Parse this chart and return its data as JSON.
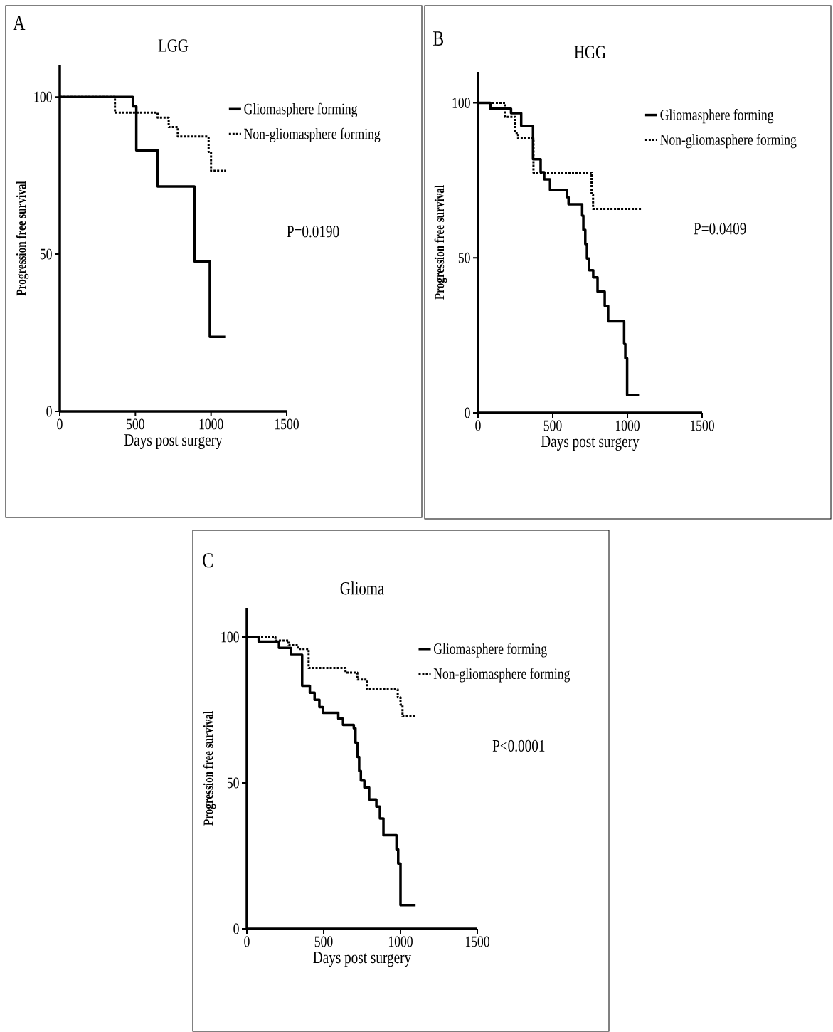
{
  "chart_data": [
    {
      "type": "step",
      "title": "LGG",
      "xlabel": "Days post surgery",
      "ylabel": "Progression free survival",
      "xlim": [
        0,
        1500
      ],
      "ylim": [
        0,
        110
      ],
      "xticks": [
        0,
        500,
        1000,
        1500
      ],
      "yticks": [
        0,
        50,
        100
      ],
      "legend": "top right",
      "marker": "none",
      "annotations": [
        "A",
        "P=0.0190"
      ],
      "series": [
        {
          "name": "Gliomasphere forming",
          "color": "#000000",
          "line_style": "solid",
          "x": [
            0,
            483,
            506,
            647,
            890,
            992,
            1094
          ],
          "values": [
            100,
            97,
            83,
            71.5,
            47.7,
            23.7,
            23.7
          ]
        },
        {
          "name": "Non-gliomasphere forming",
          "color": "#000000",
          "line_style": "dotted",
          "x": [
            0,
            365,
            647,
            720,
            780,
            984,
            1000,
            1098
          ],
          "values": [
            100,
            95,
            93.4,
            90.4,
            87.4,
            82.5,
            76.5,
            76.5
          ]
        }
      ]
    },
    {
      "type": "step",
      "title": "HGG",
      "xlabel": "Days post surgery",
      "ylabel": "Progression free survival",
      "xlim": [
        0,
        1500
      ],
      "ylim": [
        0,
        110
      ],
      "xticks": [
        0,
        500,
        1000,
        1500
      ],
      "yticks": [
        0,
        50,
        100
      ],
      "legend": "top right",
      "marker": "none",
      "annotations": [
        "B",
        "P=0.0409"
      ],
      "series": [
        {
          "name": "Gliomasphere forming",
          "color": "#000000",
          "line_style": "solid",
          "x": [
            0,
            82,
            221,
            289,
            368,
            419,
            443,
            482,
            594,
            606,
            697,
            705,
            718,
            729,
            744,
            771,
            800,
            848,
            871,
            978,
            986,
            998,
            1078
          ],
          "values": [
            100,
            98.1,
            96.7,
            92.6,
            81.8,
            77.6,
            75.3,
            71.9,
            69.6,
            67.3,
            63.6,
            59,
            54.4,
            49.8,
            46,
            43.7,
            39.1,
            34.5,
            29.5,
            22.2,
            17.6,
            5.7,
            5.7
          ]
        },
        {
          "name": "Non-gliomasphere forming",
          "color": "#000000",
          "line_style": "dotted",
          "x": [
            0,
            181,
            250,
            268,
            371,
            760,
            770,
            1099
          ],
          "values": [
            100,
            95.5,
            90.3,
            88.5,
            77.5,
            70.4,
            65.8,
            65.8
          ]
        }
      ]
    },
    {
      "type": "step",
      "title": "Glioma",
      "xlabel": "Days post surgery",
      "ylabel": "Progression free survival",
      "xlim": [
        0,
        1500
      ],
      "ylim": [
        0,
        110
      ],
      "xticks": [
        0,
        500,
        1000,
        1500
      ],
      "yticks": [
        0,
        50,
        100
      ],
      "legend": "top right",
      "marker": "none",
      "annotations": [
        "C",
        "P<0.0001"
      ],
      "series": [
        {
          "name": "Gliomasphere forming",
          "color": "#000000",
          "line_style": "solid",
          "x": [
            0,
            77,
            209,
            286,
            360,
            410,
            441,
            472,
            495,
            595,
            626,
            696,
            707,
            719,
            731,
            742,
            765,
            796,
            843,
            866,
            889,
            974,
            985,
            1000,
            1098
          ],
          "values": [
            100,
            98.4,
            96.3,
            93.9,
            83.3,
            80.9,
            78.5,
            76,
            74,
            72,
            69.9,
            68.7,
            63.8,
            58.9,
            54.1,
            50.8,
            48.4,
            44.3,
            41.9,
            37.8,
            32.1,
            27.2,
            22.4,
            8.1,
            8.1
          ]
        },
        {
          "name": "Non-gliomasphere forming",
          "color": "#000000",
          "line_style": "dotted",
          "x": [
            0,
            186,
            271,
            332,
            402,
            642,
            719,
            781,
            982,
            1000,
            1013,
            1098
          ],
          "values": [
            100,
            98.8,
            97.2,
            95.9,
            89.4,
            87.8,
            85.4,
            82.1,
            79.3,
            76.8,
            72.8,
            72.8
          ]
        }
      ]
    }
  ]
}
